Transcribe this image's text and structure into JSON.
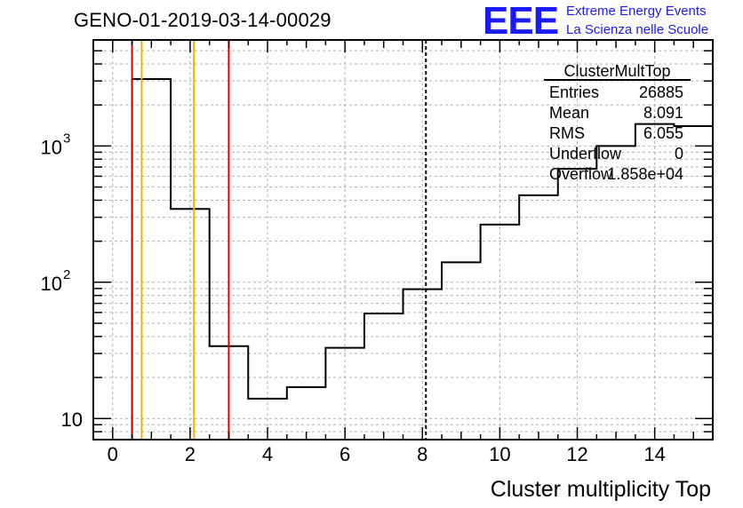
{
  "header": {
    "run_title": "GENO-01-2019-03-14-00029",
    "logo_text": "EEE",
    "logo_line1": "Extreme Energy Events",
    "logo_line2": "La Scienza nelle Scuole"
  },
  "stats_box": {
    "title": "ClusterMultTop",
    "rows": [
      {
        "label": "Entries",
        "value": "26885"
      },
      {
        "label": "Mean",
        "value": "8.091"
      },
      {
        "label": "RMS",
        "value": "6.055"
      },
      {
        "label": "Underflow",
        "value": "0"
      },
      {
        "label": "Overflow",
        "value": "1.858e+04"
      }
    ]
  },
  "chart_data": {
    "type": "bar",
    "style": "step-histogram",
    "xlabel": "Cluster multiplicity Top",
    "ylabel": "",
    "xlim": [
      -0.5,
      15.5
    ],
    "ylim": [
      7,
      6000
    ],
    "y_scale": "log",
    "grid": true,
    "x_ticks": [
      0,
      2,
      4,
      6,
      8,
      10,
      12,
      14
    ],
    "x_tick_labels": [
      "0",
      "2",
      "4",
      "6",
      "8",
      "10",
      "12",
      "14"
    ],
    "y_ticks": [
      10,
      100,
      1000
    ],
    "y_tick_labels": [
      "10",
      "10^2",
      "10^3"
    ],
    "bin_edges": [
      0.5,
      1.5,
      2.5,
      3.5,
      4.5,
      5.5,
      6.5,
      7.5,
      8.5,
      9.5,
      10.5,
      11.5,
      12.5,
      13.5,
      14.5,
      15.5
    ],
    "values": [
      3100,
      345,
      34,
      14,
      17,
      33,
      59,
      89,
      140,
      265,
      435,
      680,
      1000,
      1450,
      1400
    ],
    "vertical_lines": [
      {
        "x": 0.5,
        "color": "#e00000",
        "style": "solid"
      },
      {
        "x": 0.75,
        "color": "#f0b000",
        "style": "solid"
      },
      {
        "x": 2.1,
        "color": "#f0b000",
        "style": "solid"
      },
      {
        "x": 3.0,
        "color": "#e00000",
        "style": "solid"
      },
      {
        "x": 8.091,
        "color": "#000000",
        "style": "dashed"
      }
    ]
  },
  "colors": {
    "histogram": "#000000",
    "grid": "#b0b0b0",
    "logo": "#1a1aff"
  }
}
